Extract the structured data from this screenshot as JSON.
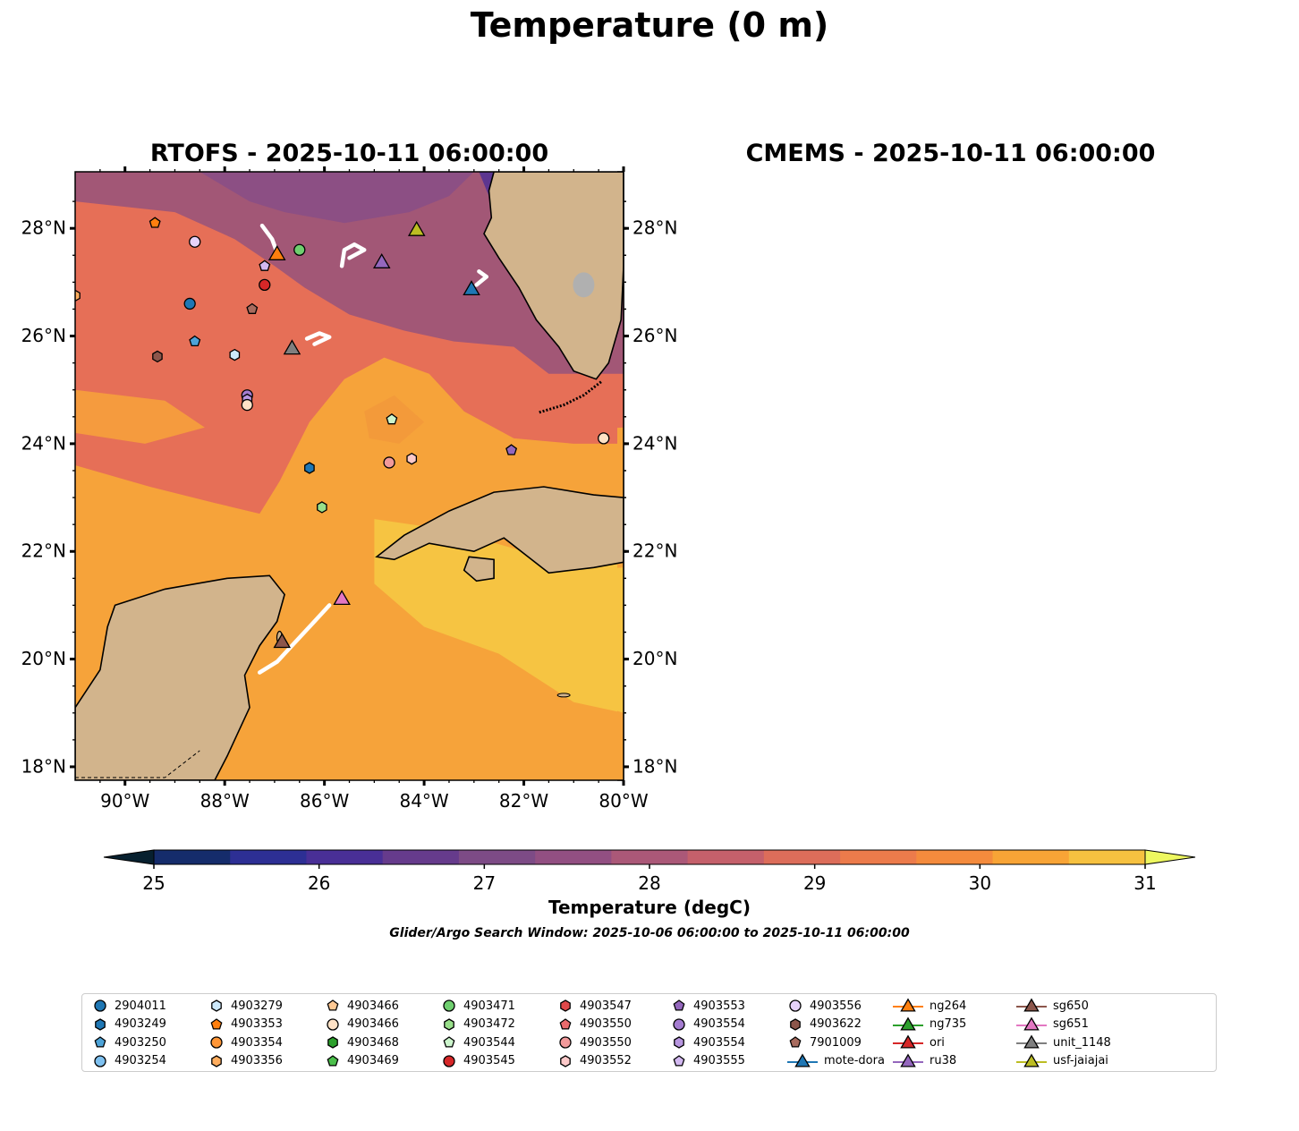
{
  "title": "Temperature (0 m)",
  "maps": [
    {
      "title": "RTOFS - 2025-10-11 06:00:00",
      "variant": "rtofs"
    },
    {
      "title": "CMEMS - 2025-10-11 06:00:00",
      "variant": "cmems"
    }
  ],
  "axes": {
    "lon_ticks": [
      "90°W",
      "88°W",
      "86°W",
      "84°W",
      "82°W",
      "80°W"
    ],
    "lat_ticks": [
      "28°N",
      "26°N",
      "24°N",
      "22°N",
      "20°N",
      "18°N"
    ]
  },
  "colorbar": {
    "label": "Temperature (degC)",
    "ticks": [
      "25",
      "26",
      "27",
      "28",
      "29",
      "30",
      "31"
    ],
    "colors": [
      "#0b2a45",
      "#152c6b",
      "#2d2f94",
      "#492f96",
      "#663b8c",
      "#7d4b86",
      "#924f82",
      "#ab5878",
      "#c5606b",
      "#dc6d5a",
      "#ec7b4b",
      "#f48b3d",
      "#f8a436",
      "#f6c140"
    ],
    "min_color": "#07202f",
    "max_color": "#eef860"
  },
  "search_window": "Glider/Argo Search Window: 2025-10-06 06:00:00 to 2025-10-11 06:00:00",
  "legend": [
    {
      "label": "2904011",
      "shape": "circle",
      "color": "#1f77b4"
    },
    {
      "label": "4903249",
      "shape": "hexagon",
      "color": "#1f77b4"
    },
    {
      "label": "4903250",
      "shape": "pentagon",
      "color": "#4da3d8"
    },
    {
      "label": "4903254",
      "shape": "circle",
      "color": "#7ec0ef"
    },
    {
      "label": "4903279",
      "shape": "hexagon",
      "color": "#cde9fb"
    },
    {
      "label": "4903353",
      "shape": "pentagon",
      "color": "#ff7f0e"
    },
    {
      "label": "4903354",
      "shape": "circle",
      "color": "#ff9637"
    },
    {
      "label": "4903356",
      "shape": "hexagon",
      "color": "#ffad5e"
    },
    {
      "label": "4903466",
      "shape": "pentagon",
      "color": "#ffc994"
    },
    {
      "label": "4903466",
      "shape": "circle",
      "color": "#ffe2c6"
    },
    {
      "label": "4903468",
      "shape": "hexagon",
      "color": "#2ca02c"
    },
    {
      "label": "4903469",
      "shape": "pentagon",
      "color": "#4bbf4b"
    },
    {
      "label": "4903471",
      "shape": "circle",
      "color": "#6fcf6f"
    },
    {
      "label": "4903472",
      "shape": "hexagon",
      "color": "#98df8a"
    },
    {
      "label": "4903544",
      "shape": "pentagon",
      "color": "#ccf5cc"
    },
    {
      "label": "4903545",
      "shape": "circle",
      "color": "#d62728"
    },
    {
      "label": "4903547",
      "shape": "hexagon",
      "color": "#e0484a"
    },
    {
      "label": "4903550",
      "shape": "pentagon",
      "color": "#ea6b6d"
    },
    {
      "label": "4903550",
      "shape": "circle",
      "color": "#f29a9b"
    },
    {
      "label": "4903552",
      "shape": "hexagon",
      "color": "#fcc9c9"
    },
    {
      "label": "4903553",
      "shape": "pentagon",
      "color": "#9467bd"
    },
    {
      "label": "4903554",
      "shape": "circle",
      "color": "#a47cd0"
    },
    {
      "label": "4903554",
      "shape": "hexagon",
      "color": "#b896e0"
    },
    {
      "label": "4903555",
      "shape": "pentagon",
      "color": "#d2b8f0"
    },
    {
      "label": "4903556",
      "shape": "circle",
      "color": "#e6d2fa"
    },
    {
      "label": "4903622",
      "shape": "hexagon",
      "color": "#8c564b"
    },
    {
      "label": "7901009",
      "shape": "pentagon",
      "color": "#a86b5e"
    },
    {
      "label": "mote-dora",
      "shape": "triangle-line",
      "color": "#1f77b4"
    },
    {
      "label": "ng264",
      "shape": "triangle-line",
      "color": "#ff7f0e"
    },
    {
      "label": "ng735",
      "shape": "triangle-line",
      "color": "#2ca02c"
    },
    {
      "label": "ori",
      "shape": "triangle-line",
      "color": "#d62728"
    },
    {
      "label": "ru38",
      "shape": "triangle-line",
      "color": "#9467bd"
    },
    {
      "label": "sg650",
      "shape": "triangle-line",
      "color": "#8c564b"
    },
    {
      "label": "sg651",
      "shape": "triangle-line",
      "color": "#e377c2"
    },
    {
      "label": "unit_1148",
      "shape": "triangle-line",
      "color": "#7f7f7f"
    },
    {
      "label": "usf-jaiajai",
      "shape": "triangle-line",
      "color": "#bcbd22"
    }
  ],
  "markers": [
    {
      "name": "4903353",
      "shape": "pentagon",
      "color": "#ff7f0e",
      "lon": -89.4,
      "lat": 28.1
    },
    {
      "name": "4903556",
      "shape": "circle",
      "color": "#e6d2fa",
      "lon": -88.6,
      "lat": 27.75
    },
    {
      "name": "4903555",
      "shape": "pentagon",
      "color": "#d2b8f0",
      "lon": -87.2,
      "lat": 27.3
    },
    {
      "name": "4903545",
      "shape": "circle",
      "color": "#d62728",
      "lon": -87.2,
      "lat": 26.95
    },
    {
      "name": "4903471",
      "shape": "circle",
      "color": "#6fcf6f",
      "lon": -86.5,
      "lat": 27.6
    },
    {
      "name": "4903356",
      "shape": "hexagon",
      "color": "#ffad5e",
      "lon": -91.0,
      "lat": 26.75
    },
    {
      "name": "2904011",
      "shape": "circle",
      "color": "#1f77b4",
      "lon": -88.7,
      "lat": 26.6
    },
    {
      "name": "7901009",
      "shape": "pentagon",
      "color": "#a86b5e",
      "lon": -87.45,
      "lat": 26.5
    },
    {
      "name": "4903250",
      "shape": "pentagon",
      "color": "#4da3d8",
      "lon": -88.6,
      "lat": 25.9
    },
    {
      "name": "4903622",
      "shape": "hexagon",
      "color": "#8c564b",
      "lon": -89.35,
      "lat": 25.62
    },
    {
      "name": "4903279",
      "shape": "hexagon",
      "color": "#cde9fb",
      "lon": -87.8,
      "lat": 25.65
    },
    {
      "name": "4903554",
      "shape": "circle",
      "color": "#a47cd0",
      "lon": -87.55,
      "lat": 24.9
    },
    {
      "name": "4903554b",
      "shape": "hexagon",
      "color": "#b896e0",
      "lon": -87.55,
      "lat": 24.82
    },
    {
      "name": "4903466",
      "shape": "circle",
      "color": "#ffe2c6",
      "lon": -87.55,
      "lat": 24.72
    },
    {
      "name": "4903544",
      "shape": "pentagon",
      "color": "#ccf5cc",
      "lon": -84.65,
      "lat": 24.45
    },
    {
      "name": "4903249",
      "shape": "hexagon",
      "color": "#1f77b4",
      "lon": -86.3,
      "lat": 23.55
    },
    {
      "name": "4903550",
      "shape": "circle",
      "color": "#f29a9b",
      "lon": -84.7,
      "lat": 23.65
    },
    {
      "name": "4903552",
      "shape": "hexagon",
      "color": "#fcc9c9",
      "lon": -84.25,
      "lat": 23.72
    },
    {
      "name": "4903553",
      "shape": "pentagon",
      "color": "#9467bd",
      "lon": -82.25,
      "lat": 23.88
    },
    {
      "name": "4903472",
      "shape": "hexagon",
      "color": "#98df8a",
      "lon": -86.05,
      "lat": 22.82
    },
    {
      "name": "4903466b",
      "shape": "circle",
      "color": "#ffe2c6",
      "lon": -80.4,
      "lat": 24.1
    },
    {
      "name": "ng264",
      "shape": "triangle",
      "color": "#ff7f0e",
      "lon": -86.95,
      "lat": 27.5
    },
    {
      "name": "usf-jaiajai",
      "shape": "triangle",
      "color": "#bcbd22",
      "lon": -84.15,
      "lat": 27.95
    },
    {
      "name": "ru38",
      "shape": "triangle",
      "color": "#9467bd",
      "lon": -84.85,
      "lat": 27.35
    },
    {
      "name": "mote-dora",
      "shape": "triangle",
      "color": "#1f77b4",
      "lon": -83.05,
      "lat": 26.85
    },
    {
      "name": "unit_1148",
      "shape": "triangle",
      "color": "#7f7f7f",
      "lon": -86.65,
      "lat": 25.75
    },
    {
      "name": "sg651",
      "shape": "triangle",
      "color": "#e377c2",
      "lon": -85.65,
      "lat": 21.1
    },
    {
      "name": "sg650",
      "shape": "triangle",
      "color": "#8c564b",
      "lon": -86.85,
      "lat": 20.3
    }
  ],
  "tracks": [
    [
      [
        -87.25,
        28.05
      ],
      [
        -87.05,
        27.8
      ],
      [
        -86.95,
        27.55
      ]
    ],
    [
      [
        -85.65,
        27.3
      ],
      [
        -85.6,
        27.6
      ],
      [
        -85.4,
        27.7
      ],
      [
        -85.2,
        27.6
      ],
      [
        -85.5,
        27.45
      ]
    ],
    [
      [
        -82.9,
        27.2
      ],
      [
        -82.75,
        27.1
      ],
      [
        -82.95,
        26.95
      ]
    ],
    [
      [
        -86.35,
        25.95
      ],
      [
        -86.1,
        26.05
      ],
      [
        -85.9,
        25.98
      ],
      [
        -86.2,
        25.85
      ]
    ],
    [
      [
        -87.3,
        19.75
      ],
      [
        -86.95,
        19.95
      ],
      [
        -86.6,
        20.3
      ],
      [
        -86.2,
        20.7
      ],
      [
        -85.9,
        21.0
      ]
    ]
  ]
}
